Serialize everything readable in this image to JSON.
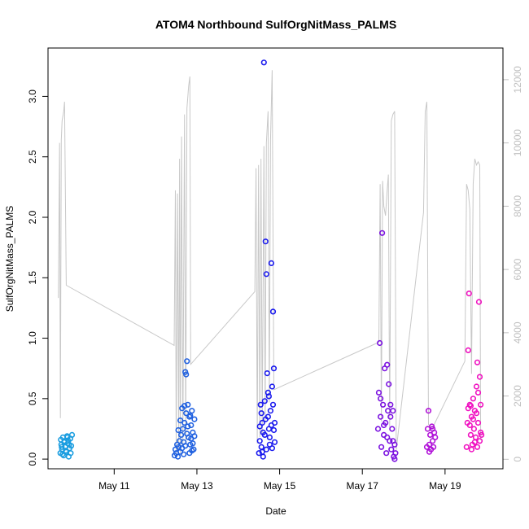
{
  "chart_data": {
    "type": "scatter",
    "title": "ATOM4 Northbound SulfOrgNitMass_PALMS",
    "xlabel": "Date",
    "ylabel": "SulfOrgNitMass_PALMS",
    "x_ticks": [
      "May 11",
      "May 13",
      "May 15",
      "May 17",
      "May 19"
    ],
    "x_tick_days": [
      11,
      13,
      15,
      17,
      19
    ],
    "xlim_days": [
      9.4,
      20.4
    ],
    "ylim": [
      -0.08,
      3.4
    ],
    "y_ticks": [
      "0.0",
      "0.5",
      "1.0",
      "1.5",
      "2.0",
      "2.5",
      "3.0"
    ],
    "y_tick_values": [
      0,
      0.5,
      1,
      1.5,
      2,
      2.5,
      3
    ],
    "y2lim": [
      -300,
      13000
    ],
    "y2_ticks": [
      "0",
      "2000",
      "4000",
      "6000",
      "8000",
      "10000",
      "12000"
    ],
    "y2_tick_values": [
      0,
      2000,
      4000,
      6000,
      8000,
      10000,
      12000
    ],
    "grid": false,
    "point_style": "open-circle",
    "series": [
      {
        "color": "#1a9de0",
        "points": [
          [
            9.7,
            0.05
          ],
          [
            9.72,
            0.12
          ],
          [
            9.74,
            0.08
          ],
          [
            9.76,
            0.18
          ],
          [
            9.78,
            0.03
          ],
          [
            9.8,
            0.15
          ],
          [
            9.82,
            0.1
          ],
          [
            9.84,
            0.06
          ],
          [
            9.86,
            0.19
          ],
          [
            9.88,
            0.13
          ],
          [
            9.9,
            0.02
          ],
          [
            9.92,
            0.09
          ],
          [
            9.94,
            0.17
          ],
          [
            9.96,
            0.11
          ],
          [
            9.98,
            0.2
          ],
          [
            9.71,
            0.16
          ],
          [
            9.75,
            0.04
          ],
          [
            9.79,
            0.14
          ],
          [
            9.83,
            0.07
          ],
          [
            9.87,
            0.18
          ],
          [
            9.91,
            0.12
          ],
          [
            9.95,
            0.05
          ],
          [
            9.73,
            0.1
          ],
          [
            9.89,
            0.15
          ]
        ]
      },
      {
        "color": "#1f60e0",
        "points": [
          [
            12.46,
            0.03
          ],
          [
            12.48,
            0.08
          ],
          [
            12.5,
            0.05
          ],
          [
            12.52,
            0.12
          ],
          [
            12.54,
            0.02
          ],
          [
            12.56,
            0.1
          ],
          [
            12.58,
            0.15
          ],
          [
            12.6,
            0.06
          ],
          [
            12.62,
            0.2
          ],
          [
            12.64,
            0.09
          ],
          [
            12.66,
            0.25
          ],
          [
            12.68,
            0.14
          ],
          [
            12.7,
            0.3
          ],
          [
            12.72,
            0.72
          ],
          [
            12.74,
            0.7
          ],
          [
            12.76,
            0.81
          ],
          [
            12.78,
            0.45
          ],
          [
            12.8,
            0.18
          ],
          [
            12.82,
            0.35
          ],
          [
            12.84,
            0.12
          ],
          [
            12.86,
            0.28
          ],
          [
            12.88,
            0.4
          ],
          [
            12.9,
            0.22
          ],
          [
            12.92,
            0.08
          ],
          [
            12.94,
            0.33
          ],
          [
            12.7,
            0.44
          ],
          [
            12.74,
            0.38
          ],
          [
            12.78,
            0.27
          ],
          [
            12.82,
            0.05
          ],
          [
            12.86,
            0.17
          ],
          [
            12.6,
            0.32
          ],
          [
            12.64,
            0.42
          ],
          [
            12.68,
            0.04
          ],
          [
            12.9,
            0.13
          ],
          [
            12.94,
            0.19
          ],
          [
            12.55,
            0.24
          ],
          [
            12.72,
            0.11
          ],
          [
            12.76,
            0.21
          ],
          [
            12.84,
            0.36
          ],
          [
            12.88,
            0.07
          ]
        ]
      },
      {
        "color": "#1a1aee",
        "points": [
          [
            14.5,
            0.05
          ],
          [
            14.52,
            0.15
          ],
          [
            14.54,
            0.45
          ],
          [
            14.56,
            0.1
          ],
          [
            14.58,
            0.3
          ],
          [
            14.6,
            0.02
          ],
          [
            14.62,
            3.28
          ],
          [
            14.64,
            0.2
          ],
          [
            14.66,
            1.8
          ],
          [
            14.68,
            1.53
          ],
          [
            14.7,
            0.71
          ],
          [
            14.72,
            0.55
          ],
          [
            14.74,
            0.25
          ],
          [
            14.76,
            0.12
          ],
          [
            14.78,
            0.4
          ],
          [
            14.8,
            1.62
          ],
          [
            14.82,
            0.6
          ],
          [
            14.84,
            1.22
          ],
          [
            14.86,
            0.75
          ],
          [
            14.88,
            0.3
          ],
          [
            14.56,
            0.38
          ],
          [
            14.6,
            0.22
          ],
          [
            14.64,
            0.48
          ],
          [
            14.68,
            0.08
          ],
          [
            14.72,
            0.35
          ],
          [
            14.76,
            0.18
          ],
          [
            14.8,
            0.28
          ],
          [
            14.84,
            0.45
          ],
          [
            14.52,
            0.27
          ],
          [
            14.88,
            0.14
          ],
          [
            14.58,
            0.06
          ],
          [
            14.66,
            0.33
          ],
          [
            14.74,
            0.52
          ],
          [
            14.82,
            0.09
          ],
          [
            14.86,
            0.24
          ]
        ]
      },
      {
        "color": "#7a10e0",
        "points": [
          [
            17.38,
            0.25
          ],
          [
            17.4,
            0.55
          ],
          [
            17.42,
            0.96
          ],
          [
            17.44,
            0.35
          ],
          [
            17.46,
            0.1
          ],
          [
            17.48,
            1.87
          ],
          [
            17.5,
            0.45
          ],
          [
            17.52,
            0.2
          ],
          [
            17.54,
            0.75
          ],
          [
            17.56,
            0.3
          ],
          [
            17.58,
            0.05
          ],
          [
            17.6,
            0.78
          ],
          [
            17.62,
            0.4
          ],
          [
            17.64,
            0.62
          ],
          [
            17.66,
            0.15
          ],
          [
            17.68,
            0.35
          ],
          [
            17.7,
            0.08
          ],
          [
            17.72,
            0.25
          ],
          [
            17.74,
            0.4
          ],
          [
            17.76,
            0.02
          ],
          [
            17.78,
            0.12
          ],
          [
            17.8,
            0.05
          ],
          [
            17.44,
            0.5
          ],
          [
            17.52,
            0.28
          ],
          [
            17.6,
            0.18
          ],
          [
            17.68,
            0.45
          ],
          [
            17.74,
            0.15
          ],
          [
            17.78,
            0.0
          ]
        ]
      },
      {
        "color": "#b010d8",
        "points": [
          [
            18.56,
            0.1
          ],
          [
            18.58,
            0.25
          ],
          [
            18.6,
            0.4
          ],
          [
            18.62,
            0.12
          ],
          [
            18.64,
            0.2
          ],
          [
            18.66,
            0.08
          ],
          [
            18.68,
            0.27
          ],
          [
            18.7,
            0.15
          ],
          [
            18.72,
            0.1
          ],
          [
            18.74,
            0.22
          ],
          [
            18.76,
            0.18
          ],
          [
            18.62,
            0.06
          ],
          [
            18.7,
            0.25
          ]
        ]
      },
      {
        "color": "#f010c0",
        "points": [
          [
            19.52,
            0.1
          ],
          [
            19.54,
            0.3
          ],
          [
            19.56,
            0.9
          ],
          [
            19.58,
            1.37
          ],
          [
            19.6,
            0.45
          ],
          [
            19.62,
            0.2
          ],
          [
            19.64,
            0.35
          ],
          [
            19.66,
            0.12
          ],
          [
            19.68,
            0.5
          ],
          [
            19.7,
            0.25
          ],
          [
            19.72,
            0.4
          ],
          [
            19.74,
            0.18
          ],
          [
            19.76,
            0.6
          ],
          [
            19.78,
            0.8
          ],
          [
            19.8,
            0.3
          ],
          [
            19.82,
            1.3
          ],
          [
            19.84,
            0.15
          ],
          [
            19.86,
            0.45
          ],
          [
            19.88,
            0.2
          ],
          [
            19.56,
            0.42
          ],
          [
            19.6,
            0.28
          ],
          [
            19.64,
            0.08
          ],
          [
            19.68,
            0.33
          ],
          [
            19.72,
            0.14
          ],
          [
            19.76,
            0.38
          ],
          [
            19.8,
            0.55
          ],
          [
            19.84,
            0.68
          ],
          [
            19.86,
            0.22
          ],
          [
            19.62,
            0.44
          ],
          [
            19.78,
            0.1
          ]
        ]
      }
    ],
    "secondary_line": {
      "color": "#c8c8c8",
      "points": [
        [
          9.65,
          5100
        ],
        [
          9.68,
          10000
        ],
        [
          9.7,
          1300
        ],
        [
          9.72,
          10100
        ],
        [
          9.74,
          10700
        ],
        [
          9.78,
          11000
        ],
        [
          9.8,
          11300
        ],
        [
          9.84,
          5500
        ],
        [
          12.45,
          3600
        ],
        [
          12.48,
          8500
        ],
        [
          12.5,
          100
        ],
        [
          12.53,
          8400
        ],
        [
          12.56,
          300
        ],
        [
          12.58,
          9500
        ],
        [
          12.6,
          200
        ],
        [
          12.63,
          10200
        ],
        [
          12.66,
          400
        ],
        [
          12.7,
          10900
        ],
        [
          12.73,
          500
        ],
        [
          12.76,
          11100
        ],
        [
          12.8,
          11800
        ],
        [
          12.83,
          12100
        ],
        [
          12.85,
          3000
        ],
        [
          14.4,
          5300
        ],
        [
          14.43,
          9200
        ],
        [
          14.46,
          500
        ],
        [
          14.49,
          9300
        ],
        [
          14.52,
          700
        ],
        [
          14.55,
          9500
        ],
        [
          14.58,
          800
        ],
        [
          14.62,
          9900
        ],
        [
          14.65,
          1200
        ],
        [
          14.68,
          10000
        ],
        [
          14.72,
          11000
        ],
        [
          14.75,
          1800
        ],
        [
          14.78,
          10100
        ],
        [
          14.82,
          12300
        ],
        [
          14.86,
          2200
        ],
        [
          17.4,
          3700
        ],
        [
          17.43,
          8700
        ],
        [
          17.46,
          1200
        ],
        [
          17.49,
          8800
        ],
        [
          17.52,
          8000
        ],
        [
          17.56,
          7700
        ],
        [
          17.6,
          8500
        ],
        [
          17.63,
          9000
        ],
        [
          17.66,
          1000
        ],
        [
          17.7,
          10700
        ],
        [
          17.74,
          10900
        ],
        [
          17.78,
          11000
        ],
        [
          17.82,
          300
        ],
        [
          18.48,
          7800
        ],
        [
          18.52,
          11000
        ],
        [
          18.56,
          11300
        ],
        [
          18.6,
          1100
        ],
        [
          18.7,
          1000
        ],
        [
          19.48,
          3100
        ],
        [
          19.52,
          8700
        ],
        [
          19.56,
          8500
        ],
        [
          19.6,
          7900
        ],
        [
          19.64,
          2700
        ],
        [
          19.68,
          8700
        ],
        [
          19.72,
          9500
        ],
        [
          19.76,
          9300
        ],
        [
          19.8,
          9400
        ],
        [
          19.84,
          9300
        ],
        [
          19.86,
          600
        ]
      ]
    }
  }
}
